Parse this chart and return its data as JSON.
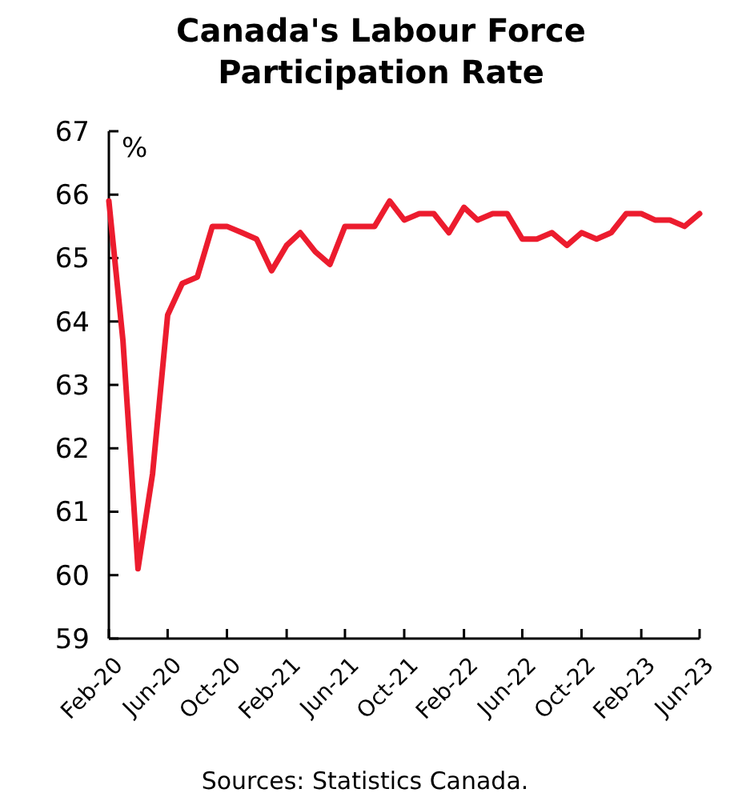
{
  "chart_data": {
    "type": "line",
    "title": "Canada's Labour Force Participation Rate",
    "ylabel": "%",
    "x": [
      "2020-02",
      "2020-03",
      "2020-04",
      "2020-05",
      "2020-06",
      "2020-07",
      "2020-08",
      "2020-09",
      "2020-10",
      "2020-11",
      "2020-12",
      "2021-01",
      "2021-02",
      "2021-03",
      "2021-04",
      "2021-05",
      "2021-06",
      "2021-07",
      "2021-08",
      "2021-09",
      "2021-10",
      "2021-11",
      "2021-12",
      "2022-01",
      "2022-02",
      "2022-03",
      "2022-04",
      "2022-05",
      "2022-06",
      "2022-07",
      "2022-08",
      "2022-09",
      "2022-10",
      "2022-11",
      "2022-12",
      "2023-01",
      "2023-02",
      "2023-03",
      "2023-04",
      "2023-05",
      "2023-06"
    ],
    "series": [
      {
        "color": "#ec1c2e",
        "values": [
          65.9,
          63.7,
          60.1,
          61.6,
          64.1,
          64.6,
          64.7,
          65.5,
          65.5,
          65.4,
          65.3,
          64.8,
          65.2,
          65.4,
          65.1,
          64.9,
          65.5,
          65.5,
          65.5,
          65.9,
          65.6,
          65.7,
          65.7,
          65.4,
          65.8,
          65.6,
          65.7,
          65.7,
          65.3,
          65.3,
          65.4,
          65.2,
          65.4,
          65.3,
          65.4,
          65.7,
          65.7,
          65.6,
          65.6,
          65.5,
          65.7
        ]
      }
    ],
    "xlim": [
      "2020-02",
      "2023-06"
    ],
    "xticks": [
      {
        "value": "2020-02",
        "label": "Feb-20"
      },
      {
        "value": "2020-06",
        "label": "Jun-20"
      },
      {
        "value": "2020-10",
        "label": "Oct-20"
      },
      {
        "value": "2021-02",
        "label": "Feb-21"
      },
      {
        "value": "2021-06",
        "label": "Jun-21"
      },
      {
        "value": "2021-10",
        "label": "Oct-21"
      },
      {
        "value": "2022-02",
        "label": "Feb-22"
      },
      {
        "value": "2022-06",
        "label": "Jun-22"
      },
      {
        "value": "2022-10",
        "label": "Oct-22"
      },
      {
        "value": "2023-02",
        "label": "Feb-23"
      },
      {
        "value": "2023-06",
        "label": "Jun-23"
      }
    ],
    "ylim": [
      59,
      67
    ],
    "yticks": [
      59,
      60,
      61,
      62,
      63,
      64,
      65,
      66,
      67
    ],
    "marker": "none",
    "line_style": "solid",
    "annotations": [
      "Sources: Statistics Canada."
    ]
  }
}
